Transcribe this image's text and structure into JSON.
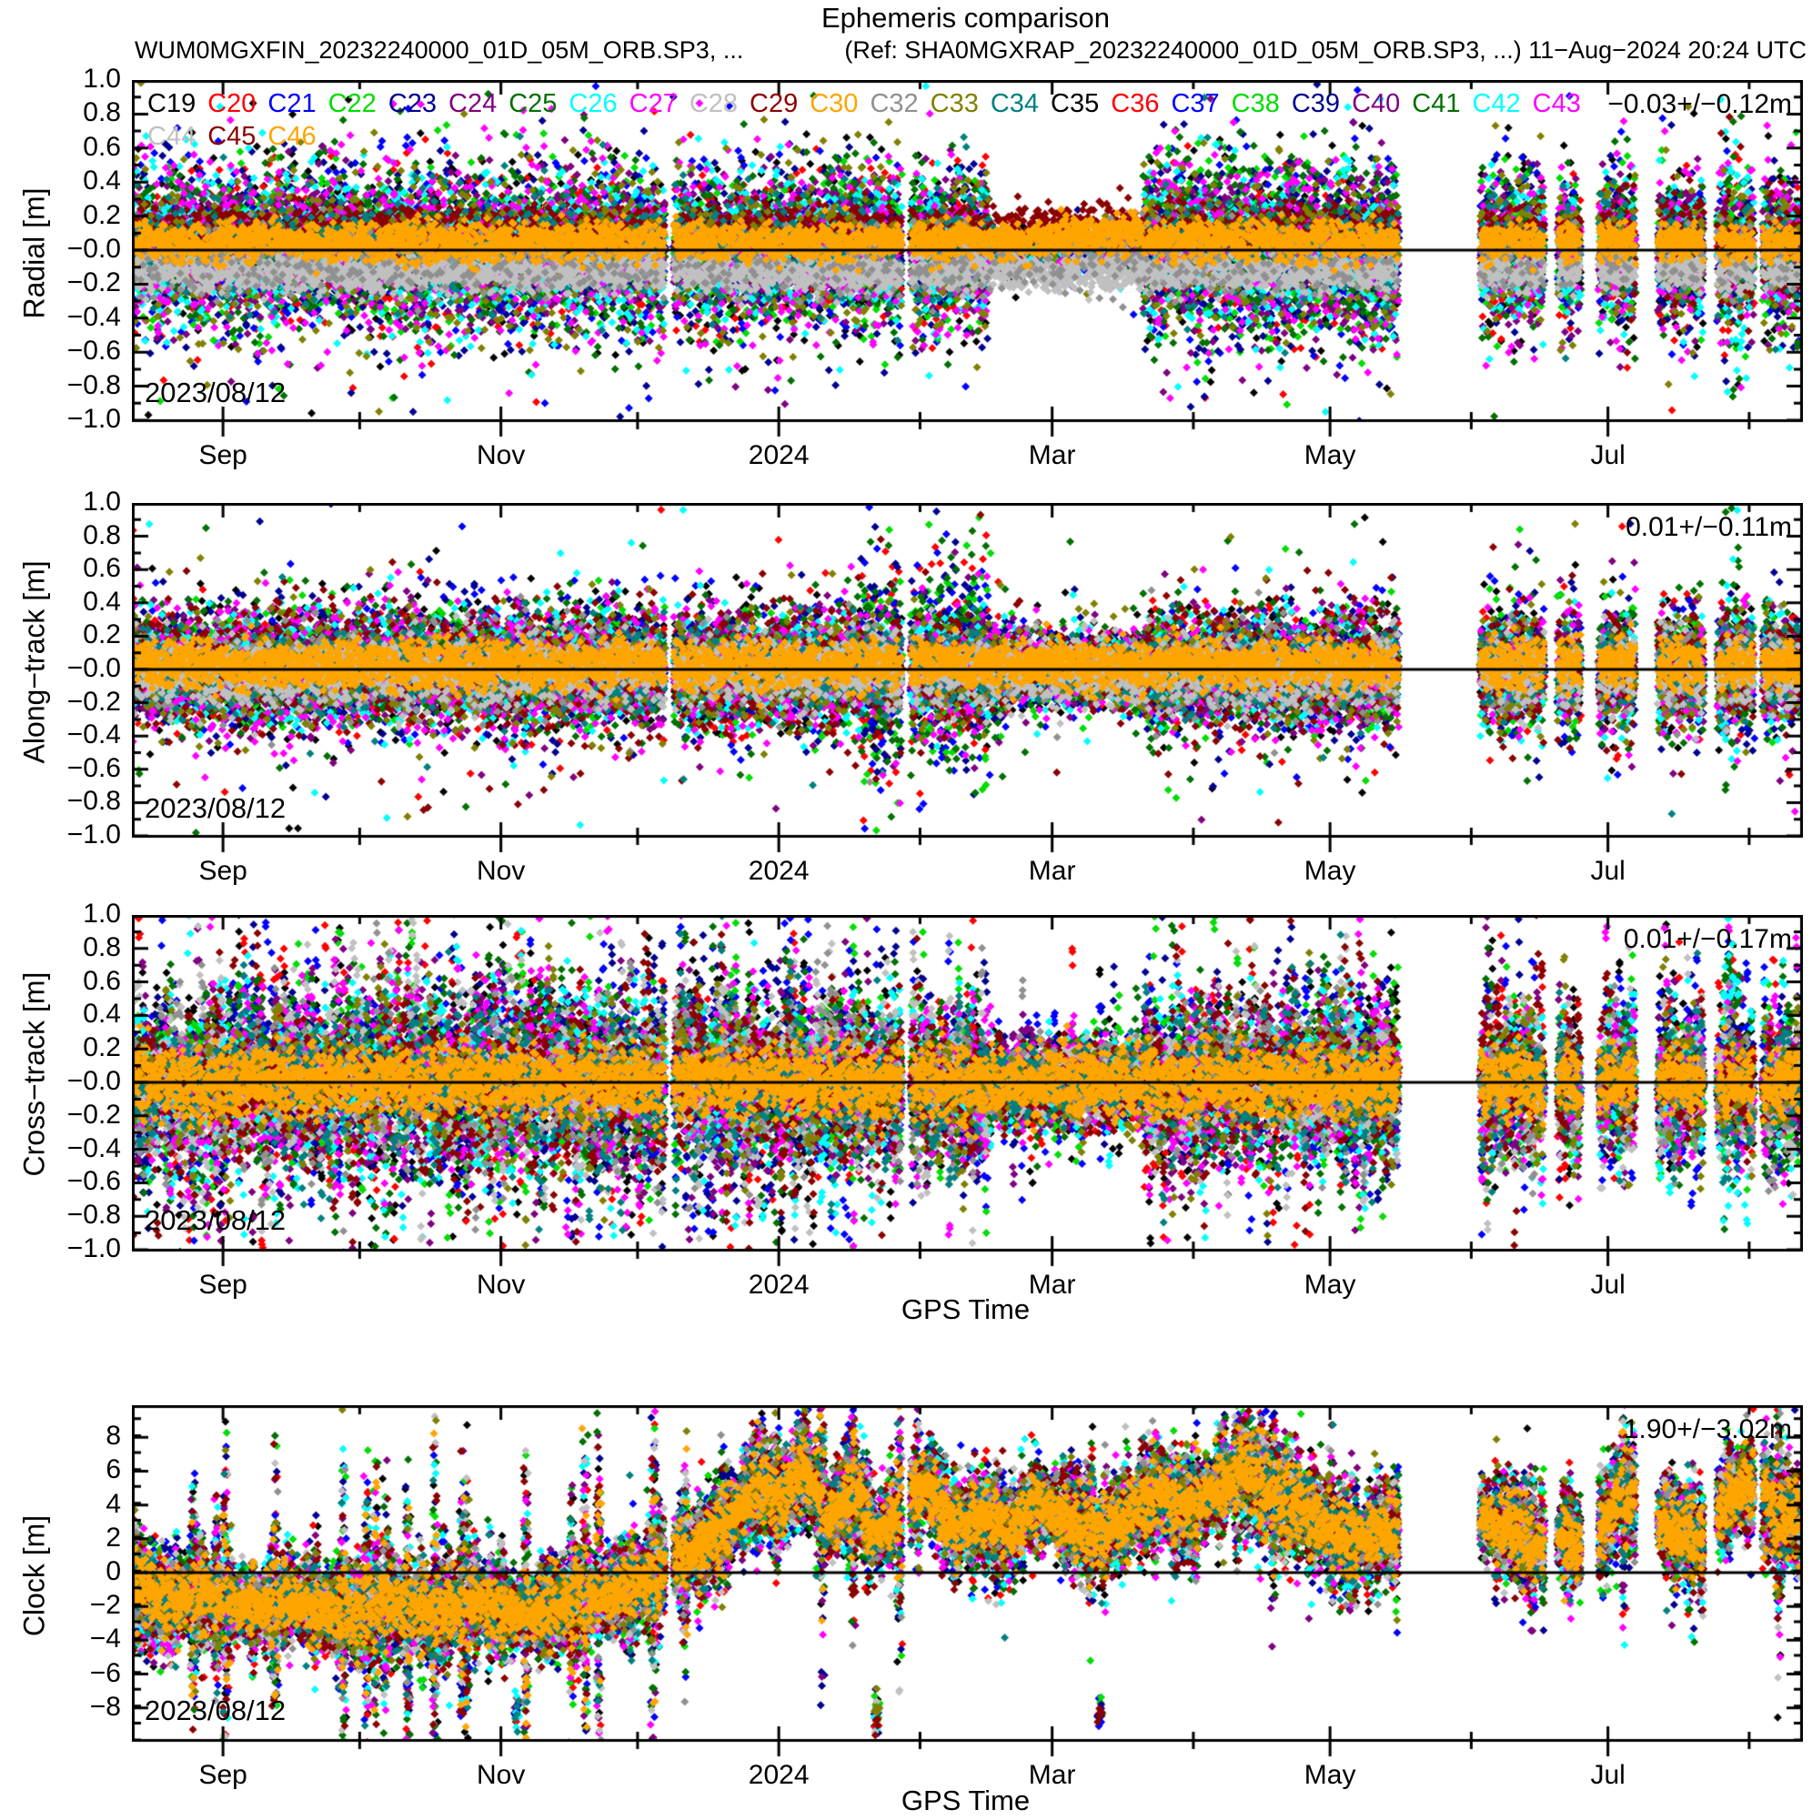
{
  "title": "Ephemeris comparison",
  "subtitle_left": "WUM0MGXFIN_20232240000_01D_05M_ORB.SP3, ...",
  "subtitle_right": "(Ref: SHA0MGXRAP_20232240000_01D_05M_ORB.SP3, ...) 11−Aug−2024 20:24 UTC",
  "legend": {
    "row1": [
      "C19",
      "C20",
      "C21",
      "C22",
      "C23",
      "C24",
      "C25",
      "C26",
      "C27",
      "C28",
      "C29",
      "C30",
      "C32",
      "C33",
      "C34",
      "C35",
      "C36",
      "C37",
      "C38",
      "C39",
      "C40",
      "C41",
      "C42",
      "C43"
    ],
    "row2": [
      "C44",
      "C45",
      "C46"
    ]
  },
  "chart_data": {
    "type": "scatter",
    "x_axis": {
      "xlabel": "GPS Time",
      "start_date_label": "2023/08/12",
      "end_datetime_label": "11−Aug−2024 20:24 UTC",
      "total_days": 366,
      "tick_labels": [
        "Sep",
        "Nov",
        "2024",
        "Mar",
        "May",
        "Jul"
      ],
      "tick_days": [
        20,
        81,
        142,
        202,
        263,
        324
      ],
      "minor_tick_days": [
        50,
        111,
        173,
        233,
        294,
        355
      ]
    },
    "panels": [
      {
        "name": "radial",
        "ylabel": "Radial [m]",
        "ylim": [
          -1.0,
          1.0
        ],
        "mean": -0.03,
        "std": 0.12,
        "stat": "−0.03+/−0.12m",
        "date_label": "2023/08/12",
        "xlabel": "",
        "ytick_values": [
          1.0,
          0.8,
          0.6,
          0.4,
          0.2,
          0.0,
          -0.2,
          -0.4,
          -0.6,
          -0.8,
          -1.0
        ],
        "ytick_labels": [
          "1.0",
          "0.8",
          "0.6",
          "0.4",
          "0.2",
          "−0.0",
          "−0.2",
          "−0.4",
          "−0.6",
          "−0.8",
          "−1.0"
        ],
        "ytick_minor_step": 0.1
      },
      {
        "name": "along-track",
        "ylabel": "Along−track [m]",
        "ylim": [
          -1.0,
          1.0
        ],
        "mean": 0.01,
        "std": 0.11,
        "stat": "0.01+/−0.11m",
        "date_label": "2023/08/12",
        "xlabel": "",
        "ytick_values": [
          1.0,
          0.8,
          0.6,
          0.4,
          0.2,
          0.0,
          -0.2,
          -0.4,
          -0.6,
          -0.8,
          -1.0
        ],
        "ytick_labels": [
          "1.0",
          "0.8",
          "0.6",
          "0.4",
          "0.2",
          "−0.0",
          "−0.2",
          "−0.4",
          "−0.6",
          "−0.8",
          "−1.0"
        ],
        "ytick_minor_step": 0.1
      },
      {
        "name": "cross-track",
        "ylabel": "Cross−track [m]",
        "ylim": [
          -1.0,
          1.0
        ],
        "mean": 0.01,
        "std": 0.17,
        "stat": "0.01+/−0.17m",
        "date_label": "2023/08/12",
        "xlabel": "GPS Time",
        "ytick_values": [
          1.0,
          0.8,
          0.6,
          0.4,
          0.2,
          0.0,
          -0.2,
          -0.4,
          -0.6,
          -0.8,
          -1.0
        ],
        "ytick_labels": [
          "1.0",
          "0.8",
          "0.6",
          "0.4",
          "0.2",
          "−0.0",
          "−0.2",
          "−0.4",
          "−0.6",
          "−0.8",
          "−1.0"
        ],
        "ytick_minor_step": 0.1
      },
      {
        "name": "clock",
        "ylabel": "Clock [m]",
        "ylim": [
          -9.9,
          9.9
        ],
        "mean": 1.9,
        "std": 3.02,
        "stat": "1.90+/−3.02m",
        "date_label": "2023/08/12",
        "xlabel": "GPS Time",
        "ytick_values": [
          8,
          6,
          4,
          2,
          0,
          -2,
          -4,
          -6,
          -8
        ],
        "ytick_labels": [
          "8",
          "6",
          "4",
          "2",
          "0",
          "−2",
          "−4",
          "−6",
          "−8"
        ],
        "ytick_minor_step": 1
      }
    ],
    "satellites": [
      {
        "id": "C19",
        "color": "#000000"
      },
      {
        "id": "C20",
        "color": "#ff0000"
      },
      {
        "id": "C21",
        "color": "#0000ff"
      },
      {
        "id": "C22",
        "color": "#00dd00"
      },
      {
        "id": "C23",
        "color": "#000090"
      },
      {
        "id": "C24",
        "color": "#800080"
      },
      {
        "id": "C25",
        "color": "#007000"
      },
      {
        "id": "C26",
        "color": "#00ffff"
      },
      {
        "id": "C27",
        "color": "#ff00ff"
      },
      {
        "id": "C28",
        "color": "#c0c0c0"
      },
      {
        "id": "C29",
        "color": "#8b0000"
      },
      {
        "id": "C30",
        "color": "#ffa500"
      },
      {
        "id": "C32",
        "color": "#909090"
      },
      {
        "id": "C33",
        "color": "#808000"
      },
      {
        "id": "C34",
        "color": "#008080"
      },
      {
        "id": "C35",
        "color": "#000000"
      },
      {
        "id": "C36",
        "color": "#ff0000"
      },
      {
        "id": "C37",
        "color": "#0000ff"
      },
      {
        "id": "C38",
        "color": "#00dd00"
      },
      {
        "id": "C39",
        "color": "#000090"
      },
      {
        "id": "C40",
        "color": "#800080"
      },
      {
        "id": "C41",
        "color": "#007000"
      },
      {
        "id": "C42",
        "color": "#00ffff"
      },
      {
        "id": "C43",
        "color": "#ff00ff"
      },
      {
        "id": "C44",
        "color": "#c0c0c0"
      },
      {
        "id": "C45",
        "color": "#8b0000"
      },
      {
        "id": "C46",
        "color": "#ffa500"
      }
    ],
    "scatter_spec": {
      "seed": 42,
      "gaps_days": [
        [
          117,
          119
        ],
        [
          169,
          171
        ],
        [
          278,
          296
        ]
      ],
      "burst_clusters_days": [
        [
          296,
          310
        ],
        [
          313,
          318
        ],
        [
          322,
          330
        ],
        [
          335,
          345
        ],
        [
          348,
          356
        ],
        [
          358,
          366
        ]
      ],
      "quiet_era_days": [
        188,
        222
      ],
      "purple_green_era_days": [
        222,
        278
      ],
      "darkred_era_start_day": 326,
      "cyan_spike_days": [
        349,
        353
      ],
      "clock_mean_path": [
        [
          0,
          -0.5
        ],
        [
          5,
          -1.8
        ],
        [
          15,
          -1.2
        ],
        [
          25,
          -2.2
        ],
        [
          35,
          -1.6
        ],
        [
          45,
          -2.6
        ],
        [
          55,
          -1.8
        ],
        [
          65,
          -2.4
        ],
        [
          75,
          -1.6
        ],
        [
          85,
          -2.6
        ],
        [
          95,
          -1.8
        ],
        [
          105,
          -1.2
        ],
        [
          112,
          -0.6
        ],
        [
          118,
          0.8
        ],
        [
          125,
          1.6
        ],
        [
          132,
          3.5
        ],
        [
          138,
          5.5
        ],
        [
          142,
          4.2
        ],
        [
          147,
          6.5
        ],
        [
          152,
          3.2
        ],
        [
          158,
          4.8
        ],
        [
          163,
          2.2
        ],
        [
          168,
          3.6
        ],
        [
          174,
          5.2
        ],
        [
          180,
          2.6
        ],
        [
          186,
          3.4
        ],
        [
          192,
          2.2
        ],
        [
          198,
          4.2
        ],
        [
          205,
          3.0
        ],
        [
          212,
          2.2
        ],
        [
          218,
          3.4
        ],
        [
          225,
          4.6
        ],
        [
          232,
          3.6
        ],
        [
          238,
          5.2
        ],
        [
          244,
          6.0
        ],
        [
          250,
          4.6
        ],
        [
          256,
          3.8
        ],
        [
          262,
          2.6
        ],
        [
          268,
          1.8
        ],
        [
          274,
          2.4
        ],
        [
          296,
          3.2
        ],
        [
          302,
          2.6
        ],
        [
          308,
          1.6
        ],
        [
          314,
          2.2
        ],
        [
          320,
          1.2
        ],
        [
          326,
          4.6
        ],
        [
          332,
          3.8
        ],
        [
          338,
          2.6
        ],
        [
          344,
          1.8
        ],
        [
          350,
          4.4
        ],
        [
          355,
          5.2
        ],
        [
          360,
          3.6
        ],
        [
          365,
          3.0
        ]
      ],
      "clock_low_cluster_days": [
        84,
        163,
        212
      ]
    }
  }
}
